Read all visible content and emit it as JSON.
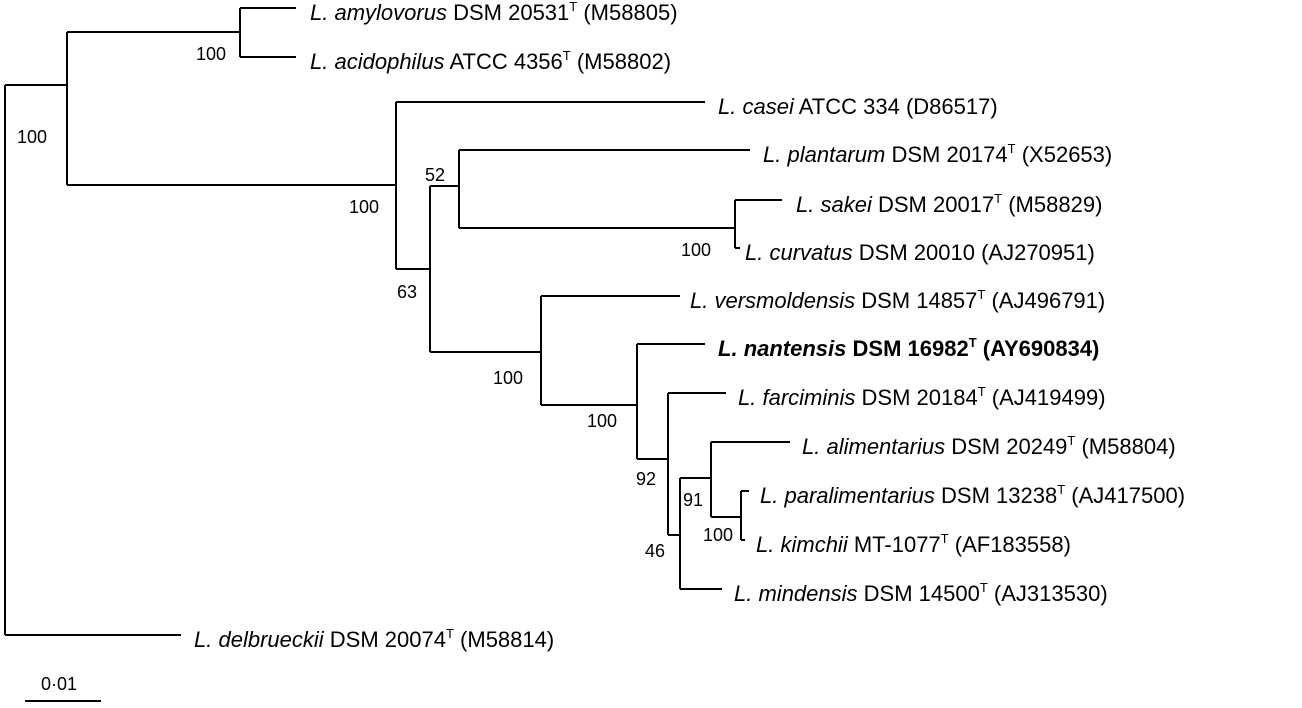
{
  "taxa": [
    {
      "genus": "L.",
      "species": "amylovorus",
      "strain": "DSM 20531",
      "type_strain": true,
      "accession": "(M58805)",
      "highlight": false
    },
    {
      "genus": "L.",
      "species": "acidophilus",
      "strain": "ATCC 4356",
      "type_strain": true,
      "accession": "(M58802)",
      "highlight": false
    },
    {
      "genus": "L.",
      "species": "casei",
      "strain": "ATCC 334",
      "type_strain": false,
      "accession": "(D86517)",
      "highlight": false
    },
    {
      "genus": "L.",
      "species": "plantarum",
      "strain": "DSM 20174",
      "type_strain": true,
      "accession": "(X52653)",
      "highlight": false
    },
    {
      "genus": "L.",
      "species": "sakei",
      "strain": "DSM 20017",
      "type_strain": true,
      "accession": "(M58829)",
      "highlight": false
    },
    {
      "genus": "L.",
      "species": "curvatus",
      "strain": "DSM 20010",
      "type_strain": false,
      "accession": "(AJ270951)",
      "highlight": false
    },
    {
      "genus": "L.",
      "species": "versmoldensis",
      "strain": "DSM 14857",
      "type_strain": true,
      "accession": "(AJ496791)",
      "highlight": false
    },
    {
      "genus": "L.",
      "species": "nantensis",
      "strain": "DSM 16982",
      "type_strain": true,
      "accession": "(AY690834)",
      "highlight": true
    },
    {
      "genus": "L.",
      "species": "farciminis",
      "strain": "DSM 20184",
      "type_strain": true,
      "accession": "(AJ419499)",
      "highlight": false
    },
    {
      "genus": "L.",
      "species": "alimentarius",
      "strain": "DSM 20249",
      "type_strain": true,
      "accession": "(M58804)",
      "highlight": false
    },
    {
      "genus": "L.",
      "species": "paralimentarius",
      "strain": "DSM 13238",
      "type_strain": true,
      "accession": "(AJ417500)",
      "highlight": false
    },
    {
      "genus": "L.",
      "species": "kimchii",
      "strain": "MT-1077",
      "type_strain": true,
      "accession": "(AF183558)",
      "highlight": false
    },
    {
      "genus": "L.",
      "species": "mindensis",
      "strain": "DSM 14500",
      "type_strain": true,
      "accession": "(AJ313530)",
      "highlight": false
    },
    {
      "genus": "L.",
      "species": "delbrueckii",
      "strain": "DSM 20074",
      "type_strain": true,
      "accession": "(M58814)",
      "highlight": false
    }
  ],
  "type_strain_mark": "T",
  "bootstrap_values": [
    "100",
    "100",
    "100",
    "52",
    "63",
    "100",
    "100",
    "100",
    "92",
    "91",
    "100",
    "46"
  ],
  "scale_bar": {
    "label": "0·01",
    "value": 0.01
  }
}
